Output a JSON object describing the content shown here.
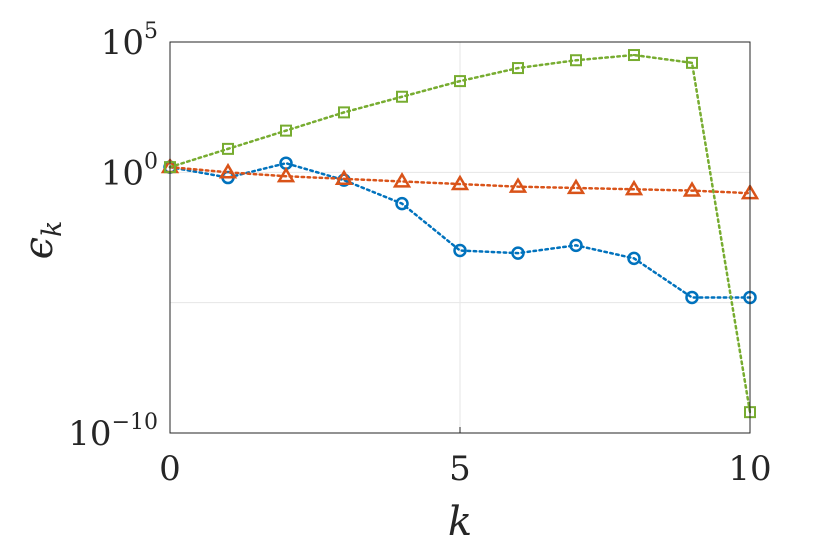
{
  "chart_data": {
    "type": "line",
    "title": "",
    "xlabel": "k",
    "ylabel": "ϵ",
    "ylabel_subscript": "k",
    "xlim": [
      0,
      10
    ],
    "ylim_log10": [
      -10,
      5
    ],
    "yscale": "log",
    "grid": true,
    "legend": "none",
    "x_ticks": [
      "0",
      "5",
      "10"
    ],
    "y_ticks": [
      {
        "base": "10",
        "exp": "5"
      },
      {
        "base": "10",
        "exp": "0"
      },
      {
        "base": "10",
        "exp": "−10"
      }
    ],
    "x": [
      0,
      1,
      2,
      3,
      4,
      5,
      6,
      7,
      8,
      9,
      10
    ],
    "series": [
      {
        "marker": "circle",
        "color": "#0072BD",
        "log10_values": [
          0.2,
          -0.2,
          0.35,
          -0.3,
          -1.2,
          -3.0,
          -3.1,
          -2.8,
          -3.3,
          -4.8,
          -4.8
        ]
      },
      {
        "marker": "triangle",
        "color": "#D95319",
        "log10_values": [
          0.2,
          0.0,
          -0.15,
          -0.25,
          -0.35,
          -0.45,
          -0.55,
          -0.6,
          -0.65,
          -0.7,
          -0.8
        ]
      },
      {
        "marker": "square",
        "color": "#77AC30",
        "log10_values": [
          0.2,
          0.9,
          1.6,
          2.3,
          2.9,
          3.5,
          4.0,
          4.3,
          4.5,
          4.2,
          -9.2
        ]
      }
    ]
  }
}
